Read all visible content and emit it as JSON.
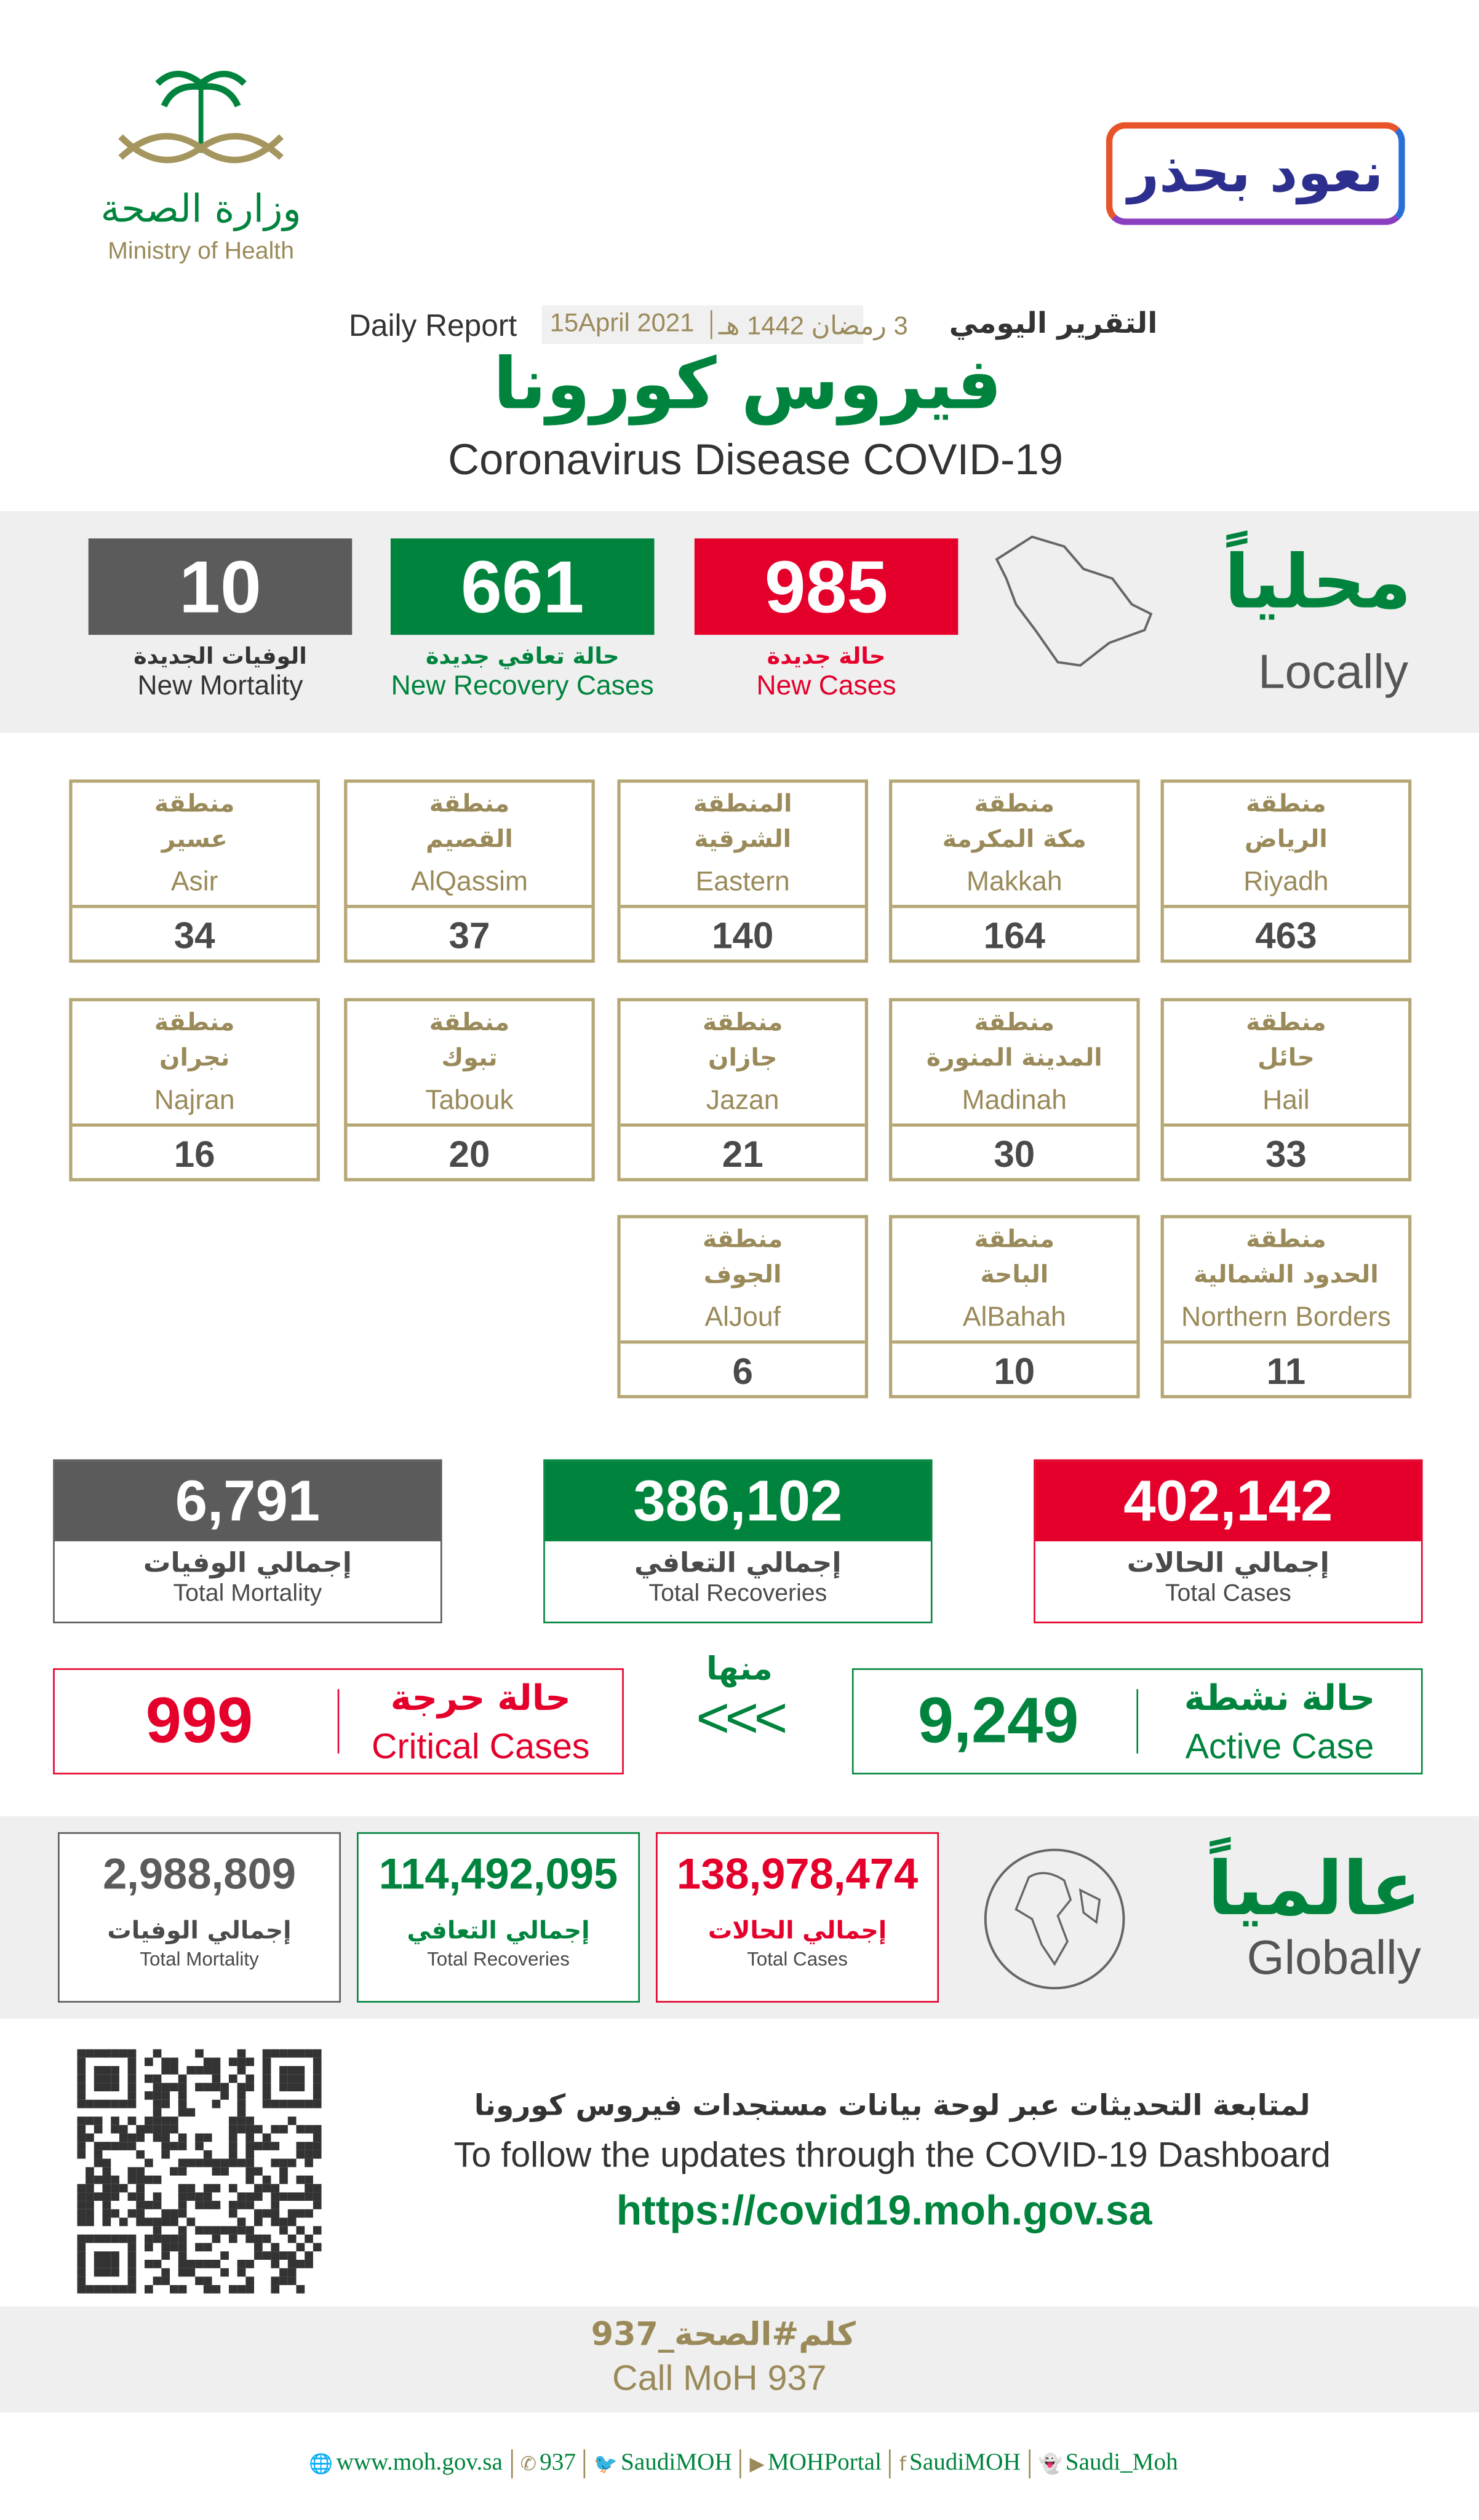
{
  "colors": {
    "red": "#e4002b",
    "green": "#00843d",
    "gray": "#5b5b5b",
    "gold": "#9a8a5a"
  },
  "logo": {
    "ar": "وزارة الصحة",
    "en": "Ministry of Health"
  },
  "campaign_badge": "نعود بحذر",
  "header": {
    "daily_ar": "التقرير اليومي",
    "hijri": "3 رمضان 1442 هـ",
    "gregorian": "15April 2021",
    "daily_en": "Daily Report",
    "title_ar": "فيروس كورونا",
    "title_en": "Coronavirus Disease COVID-19"
  },
  "local": {
    "title_ar": "محلياً",
    "title_en": "Locally",
    "new_cases": {
      "value": "985",
      "ar": "حالة جديدة",
      "en": "New Cases"
    },
    "new_recoveries": {
      "value": "661",
      "ar": "حالة تعافي جديدة",
      "en": "New Recovery Cases"
    },
    "new_mortality": {
      "value": "10",
      "ar": "الوفيات الجديدة",
      "en": "New Mortality"
    }
  },
  "regions": [
    {
      "l1": "منطقة",
      "l2": "الرياض",
      "en": "Riyadh",
      "value": "463"
    },
    {
      "l1": "منطقة",
      "l2": "مكة المكرمة",
      "en": "Makkah",
      "value": "164"
    },
    {
      "l1": "المنطقة",
      "l2": "الشرقية",
      "en": "Eastern",
      "value": "140"
    },
    {
      "l1": "منطقة",
      "l2": "القصيم",
      "en": "AlQassim",
      "value": "37"
    },
    {
      "l1": "منطقة",
      "l2": "عسير",
      "en": "Asir",
      "value": "34"
    },
    {
      "l1": "منطقة",
      "l2": "حائل",
      "en": "Hail",
      "value": "33"
    },
    {
      "l1": "منطقة",
      "l2": "المدينة المنورة",
      "en": "Madinah",
      "value": "30"
    },
    {
      "l1": "منطقة",
      "l2": "جازان",
      "en": "Jazan",
      "value": "21"
    },
    {
      "l1": "منطقة",
      "l2": "تبوك",
      "en": "Tabouk",
      "value": "20"
    },
    {
      "l1": "منطقة",
      "l2": "نجران",
      "en": "Najran",
      "value": "16"
    },
    {
      "l1": "منطقة",
      "l2": "الحدود الشمالية",
      "en": "Northern Borders",
      "value": "11"
    },
    {
      "l1": "منطقة",
      "l2": "الباحة",
      "en": "AlBahah",
      "value": "10"
    },
    {
      "l1": "منطقة",
      "l2": "الجوف",
      "en": "AlJouf",
      "value": "6"
    }
  ],
  "totals": {
    "cases": {
      "value": "402,142",
      "ar": "إجمالي الحالات",
      "en": "Total Cases"
    },
    "recoveries": {
      "value": "386,102",
      "ar": "إجمالي التعافي",
      "en": "Total Recoveries"
    },
    "mortality": {
      "value": "6,791",
      "ar": "إجمالي الوفيات",
      "en": "Total Mortality"
    }
  },
  "active": {
    "value": "9,249",
    "ar": "حالة نشطة",
    "en": "Active Case"
  },
  "critical": {
    "value": "999",
    "ar": "حالة حرجة",
    "en": "Critical Cases"
  },
  "of_which": {
    "ar": "منها",
    "arrows": "<<<"
  },
  "global": {
    "title_ar": "عالمياً",
    "title_en": "Globally",
    "cases": {
      "value": "138,978,474",
      "ar": "إجمالي الحالات",
      "en": "Total Cases"
    },
    "recoveries": {
      "value": "114,492,095",
      "ar": "إجمالي التعافي",
      "en": "Total Recoveries"
    },
    "mortality": {
      "value": "2,988,809",
      "ar": "إجمالي الوفيات",
      "en": "Total Mortality"
    }
  },
  "dashboard": {
    "ar": "لمتابعة التحديثات عبر لوحة بيانات مستجدات فيروس كورونا",
    "en": "To follow the updates through the COVID-19 Dashboard",
    "url": "https://covid19.moh.gov.sa"
  },
  "hotline": {
    "ar": "كلم#الصحة_937",
    "en": "Call MoH 937"
  },
  "footer": [
    {
      "icon": "globe-icon",
      "glyph": "🌐",
      "text": "www.moh.gov.sa"
    },
    {
      "icon": "phone-icon",
      "glyph": "✆",
      "text": "937"
    },
    {
      "icon": "twitter-icon",
      "glyph": "🐦",
      "text": "SaudiMOH"
    },
    {
      "icon": "youtube-icon",
      "glyph": "▶",
      "text": "MOHPortal"
    },
    {
      "icon": "facebook-icon",
      "glyph": "f",
      "text": "SaudiMOH"
    },
    {
      "icon": "snapchat-icon",
      "glyph": "👻",
      "text": "Saudi_Moh"
    }
  ]
}
